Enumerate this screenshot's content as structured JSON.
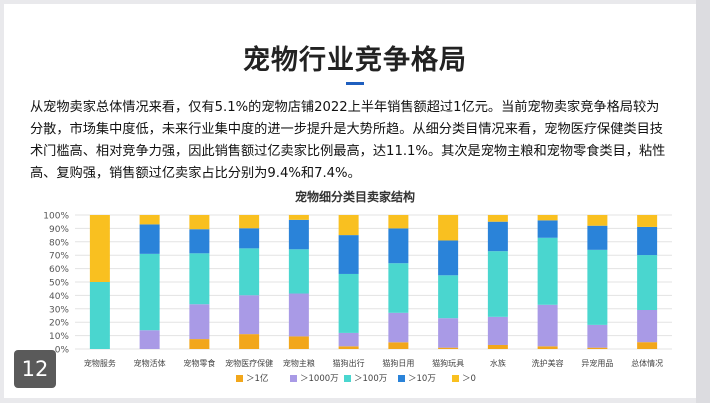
{
  "slide": {
    "title": "宠物行业竞争格局",
    "paragraph": "从宠物卖家总体情况来看，仅有5.1%的宠物店铺2022上半年销售额超过1亿元。当前宠物卖家竞争格局较为分散，市场集中度低，未来行业集中度的进一步提升是大势所趋。从细分类目情况来看，宠物医疗保健类目技术门槛高、相对竞争力强，因此销售额过亿卖家比例最高，达11.1%。其次是宠物主粮和宠物零食类目，粘性高、复购强，销售额过亿卖家占比分别为9.4%和7.4%。",
    "page_number": "12",
    "accent_color": "#1f5fbf"
  },
  "chart_data": {
    "type": "bar",
    "stacked": true,
    "title": "宠物细分类目卖家结构",
    "categories": [
      "宠物服务",
      "宠物活体",
      "宠物零食",
      "宠物医疗保健",
      "宠物主粮",
      "猫狗出行",
      "猫狗日用",
      "猫狗玩具",
      "水族",
      "洗护美容",
      "异宠用品",
      "总体情况"
    ],
    "series": [
      {
        "name": "＞1亿",
        "color": "#f2a71b",
        "values": [
          0,
          0,
          7.4,
          11.1,
          9.4,
          2,
          5,
          1,
          3,
          2,
          1,
          5.1
        ]
      },
      {
        "name": "＞1000万",
        "color": "#a99ae6",
        "values": [
          0,
          14,
          26,
          29,
          32,
          10,
          22,
          22,
          21,
          31,
          17,
          24
        ]
      },
      {
        "name": "＞100万",
        "color": "#4ad6cf",
        "values": [
          50,
          57,
          38,
          35,
          33,
          44,
          37,
          32,
          49,
          50,
          56,
          41
        ]
      },
      {
        "name": "＞10万",
        "color": "#2a83d9",
        "values": [
          0,
          22,
          18,
          15,
          22,
          29,
          26,
          26,
          22,
          13,
          18,
          21
        ]
      },
      {
        "name": "＞0",
        "color": "#f9c020",
        "values": [
          50,
          7,
          10.6,
          9.9,
          3.6,
          15,
          10,
          19,
          5,
          4,
          8,
          8.9
        ]
      }
    ],
    "y_ticks": [
      "0%",
      "10%",
      "20%",
      "30%",
      "40%",
      "50%",
      "60%",
      "70%",
      "80%",
      "90%",
      "100%"
    ],
    "ylim": [
      0,
      100
    ],
    "grid": true,
    "legend_position": "bottom"
  }
}
